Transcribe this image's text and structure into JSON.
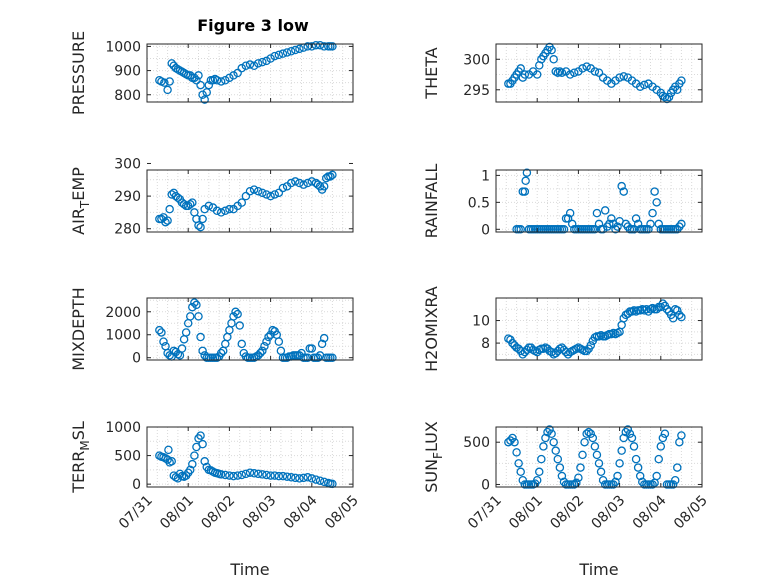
{
  "figure": {
    "title": "Figure 3 low",
    "marker_color": "#0072BD",
    "axis_color": "#262626",
    "grid_color": "#d9d9d9",
    "grid": "on (dotted)"
  },
  "chart_data": [
    {
      "id": "pressure",
      "type": "scatter",
      "title": "Figure 3 low",
      "ylabel": "PRESSURE",
      "ylabel_parts": [],
      "xlabel": "",
      "x_unit": "day",
      "xlim": [
        0,
        5
      ],
      "ylim": [
        770,
        1010
      ],
      "yticks": [
        800,
        900,
        1000
      ],
      "ytick_labels": [
        "800",
        "900",
        "1000"
      ],
      "xticks": [],
      "xtick_labels": [],
      "x": [
        0.3,
        0.35,
        0.42,
        0.5,
        0.55,
        0.6,
        0.65,
        0.7,
        0.75,
        0.8,
        0.85,
        0.9,
        0.95,
        1.0,
        1.05,
        1.1,
        1.15,
        1.2,
        1.25,
        1.3,
        1.35,
        1.4,
        1.45,
        1.5,
        1.55,
        1.6,
        1.65,
        1.7,
        1.8,
        1.9,
        2.0,
        2.1,
        2.2,
        2.3,
        2.4,
        2.5,
        2.6,
        2.7,
        2.8,
        2.9,
        3.0,
        3.1,
        3.2,
        3.3,
        3.4,
        3.5,
        3.6,
        3.7,
        3.8,
        3.9,
        4.0,
        4.1,
        4.2,
        4.3,
        4.4,
        4.45,
        4.5
      ],
      "y": [
        860,
        855,
        850,
        820,
        855,
        930,
        920,
        910,
        905,
        900,
        895,
        890,
        885,
        880,
        880,
        870,
        870,
        860,
        880,
        840,
        800,
        780,
        810,
        840,
        860,
        860,
        865,
        860,
        855,
        860,
        870,
        880,
        890,
        910,
        920,
        925,
        920,
        930,
        935,
        940,
        950,
        960,
        965,
        970,
        975,
        980,
        985,
        990,
        995,
        1000,
        1000,
        1005,
        1005,
        1000,
        1000,
        1000,
        1000
      ]
    },
    {
      "id": "theta",
      "type": "scatter",
      "ylabel": "THETA",
      "ylabel_parts": [],
      "xlabel": "",
      "x_unit": "day",
      "xlim": [
        0,
        5
      ],
      "ylim": [
        293,
        302.5
      ],
      "yticks": [
        295,
        300
      ],
      "ytick_labels": [
        "295",
        "300"
      ],
      "xticks": [],
      "xtick_labels": [],
      "x": [
        0.3,
        0.35,
        0.4,
        0.45,
        0.5,
        0.55,
        0.6,
        0.65,
        0.7,
        0.8,
        0.9,
        1.0,
        1.05,
        1.1,
        1.15,
        1.2,
        1.25,
        1.3,
        1.35,
        1.4,
        1.45,
        1.5,
        1.55,
        1.6,
        1.7,
        1.8,
        1.9,
        2.0,
        2.1,
        2.2,
        2.3,
        2.4,
        2.5,
        2.6,
        2.7,
        2.8,
        2.9,
        3.0,
        3.1,
        3.2,
        3.3,
        3.4,
        3.5,
        3.6,
        3.7,
        3.8,
        3.9,
        4.0,
        4.05,
        4.1,
        4.15,
        4.2,
        4.25,
        4.3,
        4.35,
        4.4,
        4.45,
        4.5
      ],
      "y": [
        296,
        296,
        296.5,
        297,
        297.5,
        298,
        298.5,
        297,
        297.5,
        297.5,
        298,
        297.5,
        299,
        300,
        300.5,
        301,
        301.5,
        302,
        301.5,
        300,
        298,
        297.8,
        298,
        297.8,
        298,
        297.5,
        297.8,
        298,
        298.5,
        298.8,
        298.5,
        298,
        297.8,
        297,
        296.5,
        296,
        296.5,
        297,
        297.2,
        297,
        296.5,
        296,
        295.5,
        295.8,
        296,
        295.5,
        295,
        294.5,
        294,
        293.8,
        293.5,
        293.8,
        294.5,
        295,
        295.5,
        295,
        296,
        296.5
      ]
    },
    {
      "id": "air_temp",
      "type": "scatter",
      "ylabel": "AIR_TEMP",
      "ylabel_parts": [
        "AIR",
        "T",
        "EMP"
      ],
      "xlabel": "",
      "x_unit": "day",
      "xlim": [
        0,
        5
      ],
      "ylim": [
        279,
        298
      ],
      "yticks": [
        280,
        290,
        300
      ],
      "ytick_labels": [
        "280",
        "290",
        "300"
      ],
      "xticks": [],
      "xtick_labels": [],
      "x": [
        0.3,
        0.35,
        0.4,
        0.45,
        0.5,
        0.55,
        0.6,
        0.65,
        0.7,
        0.75,
        0.8,
        0.85,
        0.9,
        0.95,
        1.0,
        1.05,
        1.1,
        1.15,
        1.2,
        1.25,
        1.3,
        1.35,
        1.4,
        1.5,
        1.6,
        1.7,
        1.8,
        1.9,
        2.0,
        2.1,
        2.2,
        2.3,
        2.4,
        2.5,
        2.6,
        2.7,
        2.8,
        2.9,
        3.0,
        3.1,
        3.2,
        3.3,
        3.4,
        3.5,
        3.6,
        3.7,
        3.8,
        3.9,
        4.0,
        4.1,
        4.15,
        4.2,
        4.25,
        4.3,
        4.35,
        4.4,
        4.45,
        4.5
      ],
      "y": [
        283,
        283,
        283.5,
        282,
        282.5,
        286,
        290.5,
        291,
        290,
        289.5,
        289,
        288,
        287.5,
        287,
        287,
        287.5,
        288,
        285,
        283,
        281,
        280.5,
        283,
        286,
        287,
        286.5,
        285.5,
        285,
        285.5,
        286,
        286,
        287,
        288,
        290,
        291.5,
        292,
        291.5,
        291,
        290.5,
        290,
        290.5,
        291,
        292.5,
        293,
        294,
        294.5,
        294,
        293.5,
        294,
        294.5,
        294,
        293.5,
        293,
        292,
        293,
        295.5,
        296,
        296,
        296.5
      ]
    },
    {
      "id": "rainfall",
      "type": "scatter",
      "ylabel": "RAINFALL",
      "ylabel_parts": [],
      "xlabel": "",
      "x_unit": "day",
      "xlim": [
        0,
        5
      ],
      "ylim": [
        -0.05,
        1.1
      ],
      "yticks": [
        0,
        0.5,
        1
      ],
      "ytick_labels": [
        "0",
        "0.5",
        "1"
      ],
      "xticks": [],
      "xtick_labels": [],
      "x": [
        0.5,
        0.55,
        0.6,
        0.65,
        0.7,
        0.72,
        0.75,
        0.8,
        0.85,
        0.9,
        0.95,
        1.0,
        1.05,
        1.1,
        1.15,
        1.2,
        1.25,
        1.3,
        1.35,
        1.4,
        1.45,
        1.5,
        1.55,
        1.6,
        1.65,
        1.7,
        1.75,
        1.8,
        1.85,
        1.9,
        1.95,
        2.0,
        2.05,
        2.1,
        2.15,
        2.2,
        2.25,
        2.3,
        2.35,
        2.4,
        2.45,
        2.5,
        2.55,
        2.6,
        2.65,
        2.7,
        2.75,
        2.8,
        2.85,
        2.9,
        2.95,
        3.0,
        3.05,
        3.1,
        3.15,
        3.2,
        3.25,
        3.3,
        3.35,
        3.4,
        3.45,
        3.5,
        3.55,
        3.6,
        3.65,
        3.7,
        3.75,
        3.8,
        3.85,
        3.9,
        3.95,
        4.0,
        4.05,
        4.1,
        4.15,
        4.2,
        4.25,
        4.3,
        4.35,
        4.4,
        4.45,
        4.5
      ],
      "y": [
        0,
        0,
        0,
        0.7,
        0.7,
        0.9,
        1.05,
        0,
        0,
        0,
        0,
        0,
        0,
        0,
        0,
        0,
        0,
        0,
        0,
        0,
        0,
        0,
        0,
        0,
        0,
        0.2,
        0.2,
        0.3,
        0.1,
        0,
        0,
        0,
        0,
        0,
        0,
        0,
        0,
        0,
        0,
        0,
        0.3,
        0.1,
        0,
        0,
        0.35,
        0.05,
        0.1,
        0.2,
        0.1,
        0,
        0.05,
        0.15,
        0.8,
        0.7,
        0.1,
        0.05,
        0,
        0,
        0,
        0.2,
        0.1,
        0,
        0,
        0,
        0,
        0,
        0.1,
        0.3,
        0.7,
        0.5,
        0.1,
        0,
        0,
        0,
        0,
        0,
        0,
        0,
        0,
        0,
        0.05,
        0.1
      ]
    },
    {
      "id": "mixdepth",
      "type": "scatter",
      "ylabel": "MIXDEPTH",
      "ylabel_parts": [],
      "xlabel": "",
      "x_unit": "day",
      "xlim": [
        0,
        5
      ],
      "ylim": [
        -100,
        2600
      ],
      "yticks": [
        0,
        1000,
        2000
      ],
      "ytick_labels": [
        "0",
        "1000",
        "2000"
      ],
      "xticks": [],
      "xtick_labels": [],
      "x": [
        0.3,
        0.35,
        0.4,
        0.45,
        0.5,
        0.55,
        0.6,
        0.65,
        0.7,
        0.75,
        0.8,
        0.85,
        0.9,
        0.95,
        1.0,
        1.05,
        1.1,
        1.15,
        1.2,
        1.25,
        1.3,
        1.35,
        1.4,
        1.45,
        1.5,
        1.55,
        1.6,
        1.65,
        1.7,
        1.75,
        1.8,
        1.85,
        1.9,
        1.95,
        2.0,
        2.05,
        2.1,
        2.15,
        2.2,
        2.25,
        2.3,
        2.35,
        2.4,
        2.45,
        2.5,
        2.55,
        2.6,
        2.65,
        2.7,
        2.75,
        2.8,
        2.85,
        2.9,
        2.95,
        3.0,
        3.05,
        3.1,
        3.15,
        3.2,
        3.25,
        3.3,
        3.35,
        3.4,
        3.45,
        3.5,
        3.55,
        3.6,
        3.65,
        3.7,
        3.75,
        3.8,
        3.85,
        3.9,
        3.95,
        4.0,
        4.05,
        4.1,
        4.15,
        4.2,
        4.25,
        4.3,
        4.35,
        4.4,
        4.45,
        4.5
      ],
      "y": [
        1200,
        1100,
        700,
        500,
        200,
        100,
        50,
        300,
        250,
        150,
        100,
        400,
        800,
        1100,
        1500,
        1800,
        2200,
        2400,
        2300,
        1800,
        900,
        300,
        100,
        0,
        0,
        0,
        0,
        0,
        0,
        50,
        200,
        300,
        600,
        900,
        1200,
        1500,
        1800,
        2000,
        1900,
        1400,
        600,
        200,
        50,
        0,
        0,
        0,
        0,
        50,
        100,
        200,
        300,
        500,
        700,
        900,
        1000,
        1200,
        1150,
        1000,
        700,
        300,
        0,
        0,
        0,
        50,
        50,
        100,
        100,
        100,
        100,
        200,
        0,
        0,
        0,
        400,
        400,
        0,
        0,
        0,
        100,
        600,
        850,
        0,
        0,
        0,
        0
      ]
    },
    {
      "id": "h2omixra",
      "type": "scatter",
      "ylabel": "H2OMIXRA",
      "ylabel_parts": [],
      "xlabel": "",
      "x_unit": "day",
      "xlim": [
        0,
        5
      ],
      "ylim": [
        6.5,
        12
      ],
      "yticks": [
        8,
        10
      ],
      "ytick_labels": [
        "8",
        "10"
      ],
      "xticks": [],
      "xtick_labels": [],
      "x": [
        0.3,
        0.35,
        0.4,
        0.45,
        0.5,
        0.55,
        0.6,
        0.65,
        0.7,
        0.75,
        0.8,
        0.85,
        0.9,
        0.95,
        1.0,
        1.05,
        1.1,
        1.15,
        1.2,
        1.25,
        1.3,
        1.35,
        1.4,
        1.45,
        1.5,
        1.55,
        1.6,
        1.65,
        1.7,
        1.75,
        1.8,
        1.85,
        1.9,
        1.95,
        2.0,
        2.05,
        2.1,
        2.15,
        2.2,
        2.25,
        2.3,
        2.35,
        2.4,
        2.45,
        2.5,
        2.55,
        2.6,
        2.65,
        2.7,
        2.75,
        2.8,
        2.85,
        2.9,
        2.95,
        3.0,
        3.05,
        3.1,
        3.15,
        3.2,
        3.25,
        3.3,
        3.35,
        3.4,
        3.45,
        3.5,
        3.55,
        3.6,
        3.65,
        3.7,
        3.75,
        3.8,
        3.85,
        3.9,
        3.95,
        4.0,
        4.05,
        4.1,
        4.15,
        4.2,
        4.25,
        4.3,
        4.35,
        4.4,
        4.45,
        4.5
      ],
      "y": [
        8.4,
        8.3,
        8.0,
        7.8,
        7.6,
        7.5,
        7.3,
        7.0,
        7.2,
        7.4,
        7.6,
        7.6,
        7.4,
        7.3,
        7.2,
        7.4,
        7.5,
        7.5,
        7.6,
        7.5,
        7.3,
        7.2,
        7.0,
        7.1,
        7.3,
        7.5,
        7.6,
        7.4,
        7.2,
        7.0,
        7.2,
        7.3,
        7.4,
        7.5,
        7.6,
        7.5,
        7.4,
        7.3,
        7.3,
        7.5,
        7.8,
        8.2,
        8.5,
        8.6,
        8.6,
        8.7,
        8.6,
        8.6,
        8.7,
        8.8,
        8.8,
        8.9,
        8.8,
        8.9,
        9.0,
        9.6,
        10.2,
        10.5,
        10.6,
        10.8,
        10.8,
        10.9,
        10.8,
        10.9,
        10.9,
        11.0,
        10.9,
        11.0,
        10.8,
        11.0,
        11.1,
        11.0,
        11.0,
        11.2,
        11.2,
        11.5,
        11.3,
        11.0,
        10.8,
        10.5,
        10.2,
        11.0,
        10.9,
        10.5,
        10.3
      ]
    },
    {
      "id": "terr_msl",
      "type": "scatter",
      "ylabel": "TERR_MSL",
      "ylabel_parts": [
        "TERR",
        "M",
        "SL"
      ],
      "xlabel": "Time",
      "x_unit": "day",
      "xlim": [
        0,
        5
      ],
      "ylim": [
        -50,
        1000
      ],
      "yticks": [
        0,
        500,
        1000
      ],
      "ytick_labels": [
        "0",
        "500",
        "1000"
      ],
      "xticks": [
        0,
        1,
        2,
        3,
        4,
        5
      ],
      "xtick_labels": [
        "07/31",
        "08/01",
        "08/02",
        "08/03",
        "08/04",
        "08/05"
      ],
      "x": [
        0.3,
        0.35,
        0.4,
        0.45,
        0.5,
        0.52,
        0.55,
        0.6,
        0.65,
        0.7,
        0.75,
        0.8,
        0.85,
        0.9,
        0.95,
        1.0,
        1.05,
        1.1,
        1.15,
        1.2,
        1.25,
        1.3,
        1.35,
        1.4,
        1.45,
        1.5,
        1.55,
        1.6,
        1.65,
        1.7,
        1.75,
        1.8,
        1.9,
        2.0,
        2.1,
        2.2,
        2.3,
        2.4,
        2.5,
        2.6,
        2.7,
        2.8,
        2.9,
        3.0,
        3.1,
        3.2,
        3.3,
        3.4,
        3.5,
        3.6,
        3.7,
        3.8,
        3.9,
        4.0,
        4.1,
        4.2,
        4.3,
        4.4,
        4.45,
        4.5
      ],
      "y": [
        500,
        480,
        470,
        450,
        430,
        600,
        380,
        400,
        150,
        120,
        100,
        180,
        140,
        130,
        150,
        200,
        250,
        350,
        500,
        650,
        800,
        850,
        700,
        400,
        300,
        250,
        240,
        220,
        200,
        190,
        180,
        170,
        160,
        150,
        140,
        150,
        160,
        180,
        200,
        190,
        180,
        170,
        160,
        150,
        150,
        140,
        140,
        130,
        120,
        110,
        100,
        110,
        120,
        100,
        80,
        60,
        40,
        20,
        10,
        5
      ]
    },
    {
      "id": "sun_flux",
      "type": "scatter",
      "ylabel": "SUN_FLUX",
      "ylabel_parts": [
        "SUN",
        "F",
        "LUX"
      ],
      "xlabel": "Time",
      "x_unit": "day",
      "xlim": [
        0,
        5
      ],
      "ylim": [
        -30,
        680
      ],
      "yticks": [
        0,
        500
      ],
      "ytick_labels": [
        "0",
        "500"
      ],
      "xticks": [
        0,
        1,
        2,
        3,
        4,
        5
      ],
      "xtick_labels": [
        "07/31",
        "08/01",
        "08/02",
        "08/03",
        "08/04",
        "08/05"
      ],
      "x": [
        0.3,
        0.35,
        0.4,
        0.45,
        0.5,
        0.55,
        0.6,
        0.65,
        0.7,
        0.75,
        0.8,
        0.85,
        0.9,
        0.95,
        1.0,
        1.05,
        1.1,
        1.15,
        1.2,
        1.25,
        1.3,
        1.35,
        1.4,
        1.45,
        1.5,
        1.55,
        1.6,
        1.65,
        1.7,
        1.75,
        1.8,
        1.85,
        1.9,
        1.95,
        2.0,
        2.05,
        2.1,
        2.15,
        2.2,
        2.25,
        2.3,
        2.35,
        2.4,
        2.45,
        2.5,
        2.55,
        2.6,
        2.65,
        2.7,
        2.75,
        2.8,
        2.85,
        2.9,
        2.95,
        3.0,
        3.05,
        3.1,
        3.15,
        3.2,
        3.25,
        3.3,
        3.35,
        3.4,
        3.45,
        3.5,
        3.55,
        3.6,
        3.65,
        3.7,
        3.75,
        3.8,
        3.85,
        3.9,
        3.95,
        4.0,
        4.05,
        4.1,
        4.15,
        4.2,
        4.25,
        4.3,
        4.35,
        4.4,
        4.45,
        4.5
      ],
      "y": [
        500,
        520,
        550,
        500,
        380,
        250,
        150,
        50,
        0,
        0,
        0,
        0,
        0,
        10,
        50,
        150,
        300,
        450,
        550,
        620,
        650,
        600,
        500,
        400,
        300,
        200,
        100,
        30,
        0,
        0,
        0,
        0,
        0,
        20,
        80,
        200,
        350,
        500,
        600,
        620,
        600,
        550,
        450,
        350,
        250,
        150,
        50,
        0,
        0,
        0,
        0,
        0,
        30,
        100,
        250,
        400,
        550,
        620,
        650,
        600,
        550,
        450,
        300,
        200,
        100,
        30,
        0,
        0,
        0,
        0,
        0,
        20,
        100,
        300,
        450,
        550,
        600,
        0,
        0,
        0,
        0,
        50,
        200,
        500,
        580
      ]
    }
  ]
}
